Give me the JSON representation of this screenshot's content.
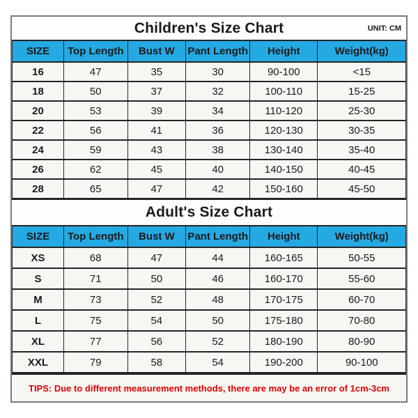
{
  "chart_data": [
    {
      "type": "table",
      "title": "Children's Size Chart",
      "unit": "UNIT: CM",
      "columns": [
        "SIZE",
        "Top Length",
        "Bust W",
        "Pant Length",
        "Height",
        "Weight(kg)"
      ],
      "rows": [
        [
          "16",
          "47",
          "35",
          "30",
          "90-100",
          "<15"
        ],
        [
          "18",
          "50",
          "37",
          "32",
          "100-110",
          "15-25"
        ],
        [
          "20",
          "53",
          "39",
          "34",
          "110-120",
          "25-30"
        ],
        [
          "22",
          "56",
          "41",
          "36",
          "120-130",
          "30-35"
        ],
        [
          "24",
          "59",
          "43",
          "38",
          "130-140",
          "35-40"
        ],
        [
          "26",
          "62",
          "45",
          "40",
          "140-150",
          "40-45"
        ],
        [
          "28",
          "65",
          "47",
          "42",
          "150-160",
          "45-50"
        ]
      ]
    },
    {
      "type": "table",
      "title": "Adult's Size Chart",
      "columns": [
        "SIZE",
        "Top Length",
        "Bust W",
        "Pant Length",
        "Height",
        "Weight(kg)"
      ],
      "rows": [
        [
          "XS",
          "68",
          "47",
          "44",
          "160-165",
          "50-55"
        ],
        [
          "S",
          "71",
          "50",
          "46",
          "160-170",
          "55-60"
        ],
        [
          "M",
          "73",
          "52",
          "48",
          "170-175",
          "60-70"
        ],
        [
          "L",
          "75",
          "54",
          "50",
          "175-180",
          "70-80"
        ],
        [
          "XL",
          "77",
          "56",
          "52",
          "180-190",
          "80-90"
        ],
        [
          "XXL",
          "79",
          "58",
          "54",
          "190-200",
          "90-100"
        ]
      ]
    }
  ],
  "tips": "TIPS: Due to different measurement methods, there are may be an error of 1cm-3cm",
  "colors": {
    "header_bg": "#25a9e3",
    "row_bg": "#f6f6f3",
    "tips_text": "#dd0000",
    "grid_line": "#242424",
    "outer_border": "#7b7b7b"
  }
}
